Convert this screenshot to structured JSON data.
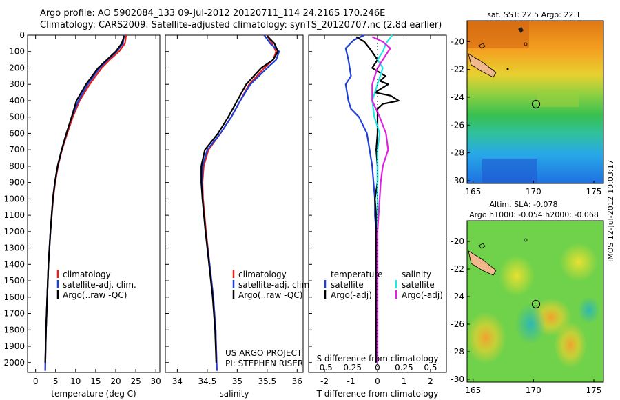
{
  "title_line1": "Argo profile: AO 5902084_133 09-Jul-2012 20120711_114 24.216S 170.246E",
  "title_line2": "Climatology: CARS2009. Satellite-adjusted climatology: synTS_20120707.nc (2.8d earlier)",
  "side_text": "IMOS 12-Jul-2012 10:03:17",
  "credit_line1": "US ARGO PROJECT",
  "credit_line2": "PI: STEPHEN RISER",
  "colors": {
    "climatology": "#e8201c",
    "satellite": "#1f3fd6",
    "argo": "#000000",
    "sat_sal": "#1ee8e8",
    "argo_sal": "#e020e0"
  },
  "chart_data": [
    {
      "type": "line",
      "name": "temperature",
      "xlabel": "temperature (deg C)",
      "ylabel": "",
      "xlim": [
        -2,
        31
      ],
      "ylim": [
        2060,
        0
      ],
      "xticks": [
        0,
        5,
        10,
        15,
        20,
        25,
        30
      ],
      "yticks": [
        0,
        100,
        200,
        300,
        400,
        500,
        600,
        700,
        800,
        900,
        1000,
        1100,
        1200,
        1300,
        1400,
        1500,
        1600,
        1700,
        1800,
        1900,
        2000
      ],
      "legend": [
        "climatology",
        "satellite-adj. clim.",
        "Argo(..raw -QC)"
      ],
      "series": [
        {
          "name": "climatology",
          "color": "#e8201c",
          "depth": [
            0,
            50,
            100,
            150,
            200,
            300,
            400,
            500,
            600,
            700,
            800,
            900,
            1000,
            1200,
            1400,
            1600,
            1800,
            2050
          ],
          "values": [
            22.6,
            22.3,
            20.8,
            18.5,
            16.5,
            13.5,
            11.0,
            9.3,
            7.9,
            6.6,
            5.6,
            4.9,
            4.4,
            3.7,
            3.2,
            2.9,
            2.6,
            2.4
          ]
        },
        {
          "name": "satellite-adj. clim.",
          "color": "#1f3fd6",
          "depth": [
            0,
            50,
            100,
            150,
            200,
            300,
            400,
            500,
            600,
            700,
            800,
            900,
            1000,
            1200,
            1400,
            1600,
            1800,
            2050
          ],
          "values": [
            22.1,
            21.8,
            20.2,
            18.0,
            16.0,
            13.0,
            10.7,
            9.0,
            7.7,
            6.5,
            5.5,
            4.8,
            4.3,
            3.7,
            3.2,
            2.9,
            2.6,
            2.4
          ]
        },
        {
          "name": "Argo(..raw -QC)",
          "color": "#000000",
          "depth": [
            5,
            50,
            100,
            150,
            200,
            300,
            400,
            450,
            500,
            600,
            700,
            800,
            900,
            1000,
            1200,
            1400,
            1600,
            1800,
            2000
          ],
          "values": [
            22.1,
            21.5,
            20.0,
            17.8,
            15.6,
            12.6,
            10.2,
            9.6,
            9.0,
            7.7,
            6.5,
            5.5,
            4.8,
            4.3,
            3.7,
            3.2,
            2.9,
            2.6,
            2.4
          ]
        }
      ]
    },
    {
      "type": "line",
      "name": "salinity",
      "xlabel": "salinity",
      "xlim": [
        33.8,
        36.1
      ],
      "ylim": [
        2060,
        0
      ],
      "xticks": [
        34,
        34.5,
        35,
        35.5,
        36
      ],
      "legend": [
        "climatology",
        "satellite-adj. clim.",
        "Argo(..raw -QC)"
      ],
      "series": [
        {
          "name": "climatology",
          "color": "#e8201c",
          "depth": [
            0,
            50,
            100,
            150,
            200,
            300,
            400,
            500,
            600,
            700,
            800,
            900,
            1000,
            1200,
            1400,
            1600,
            1800,
            2050
          ],
          "values": [
            35.5,
            35.58,
            35.65,
            35.6,
            35.45,
            35.2,
            35.05,
            34.9,
            34.72,
            34.52,
            34.44,
            34.42,
            34.43,
            34.48,
            34.54,
            34.6,
            34.64,
            34.66
          ]
        },
        {
          "name": "satellite-adj. clim.",
          "color": "#1f3fd6",
          "depth": [
            0,
            50,
            100,
            150,
            200,
            300,
            400,
            500,
            600,
            700,
            800,
            900,
            1000,
            1200,
            1400,
            1600,
            1800,
            2050
          ],
          "values": [
            35.45,
            35.55,
            35.7,
            35.65,
            35.5,
            35.22,
            35.05,
            34.9,
            34.72,
            34.5,
            34.42,
            34.41,
            34.42,
            34.47,
            34.54,
            34.6,
            34.64,
            34.66
          ]
        },
        {
          "name": "Argo(..raw -QC)",
          "color": "#000000",
          "depth": [
            5,
            50,
            100,
            150,
            200,
            300,
            400,
            500,
            600,
            700,
            800,
            900,
            1000,
            1200,
            1400,
            1600,
            1800,
            2000
          ],
          "values": [
            35.5,
            35.62,
            35.68,
            35.6,
            35.4,
            35.15,
            35.0,
            34.85,
            34.68,
            34.46,
            34.4,
            34.4,
            34.42,
            34.47,
            34.53,
            34.59,
            34.63,
            34.65
          ]
        }
      ]
    },
    {
      "type": "line",
      "name": "differences",
      "xlabel": "T difference from climatology",
      "xlabel_top": "S difference from climatology",
      "xlim": [
        -2.6,
        2.6
      ],
      "ylim": [
        2060,
        0
      ],
      "xticks": [
        -2,
        -1,
        0,
        1,
        2
      ],
      "xticks_top": [
        "-0.5",
        "-0.25",
        "0",
        "0.25",
        "0.5"
      ],
      "legend_headers": [
        "temperature",
        "salinity"
      ],
      "legend": [
        "satellite",
        "Argo(-adj)",
        "satellite",
        "Argo(-adj)"
      ],
      "series": [
        {
          "name": "temperature satellite",
          "color": "#1f3fd6",
          "depth": [
            0,
            30,
            80,
            150,
            250,
            300,
            400,
            450,
            500,
            600,
            700,
            800,
            900,
            1000,
            1100,
            1200,
            1400,
            1600,
            1800,
            2000
          ],
          "values": [
            -0.5,
            -0.9,
            -1.2,
            -1.1,
            -1.0,
            -1.2,
            -1.1,
            -1.0,
            -0.7,
            -0.4,
            -0.3,
            -0.2,
            -0.15,
            -0.1,
            -0.1,
            -0.05,
            -0.05,
            -0.05,
            -0.05,
            -0.05
          ]
        },
        {
          "name": "temperature Argo(-adj)",
          "color": "#000000",
          "depth": [
            10,
            40,
            80,
            150,
            200,
            250,
            280,
            300,
            350,
            370,
            400,
            420,
            450,
            500,
            600,
            700,
            800,
            900,
            1000,
            1100,
            1300,
            1500,
            1700,
            2000
          ],
          "values": [
            -0.8,
            -0.5,
            -0.3,
            0.0,
            -0.2,
            0.3,
            0.1,
            0.4,
            -0.1,
            0.5,
            0.8,
            0.2,
            0.0,
            0.0,
            0.0,
            -0.05,
            0.0,
            0.0,
            -0.1,
            -0.05,
            -0.05,
            -0.05,
            -0.05,
            -0.05
          ]
        },
        {
          "name": "salinity satellite",
          "color": "#1ee8e8",
          "depth": [
            0,
            50,
            100,
            150,
            200,
            300,
            400,
            500,
            600,
            700,
            800,
            900,
            1000,
            1200,
            1400,
            1600,
            1800,
            2000
          ],
          "values": [
            0.14,
            0.08,
            0.05,
            0.0,
            0.05,
            0.0,
            -0.05,
            -0.03,
            0.02,
            0.0,
            0.0,
            0.0,
            0.0,
            0.0,
            0.0,
            0.0,
            0.0,
            0.0
          ]
        },
        {
          "name": "salinity Argo(-adj)",
          "color": "#e020e0",
          "depth": [
            10,
            40,
            80,
            120,
            200,
            300,
            400,
            500,
            600,
            700,
            800,
            900,
            1000,
            1200,
            1400,
            1600,
            1800,
            2000
          ],
          "values": [
            -0.05,
            0.05,
            0.12,
            0.08,
            0.0,
            -0.05,
            -0.05,
            0.02,
            0.08,
            0.1,
            0.05,
            0.03,
            0.02,
            0.0,
            0.0,
            0.0,
            0.0,
            0.0
          ]
        }
      ]
    },
    {
      "type": "heatmap",
      "name": "sst_map",
      "title": "sat. SST: 22.5 Argo: 22.1",
      "xlim": [
        164.5,
        175.8
      ],
      "ylim": [
        -30.2,
        -18.5
      ],
      "xticks": [
        165,
        170,
        175
      ],
      "yticks": [
        -20,
        -22,
        -24,
        -26,
        -28,
        -30
      ],
      "argo_position": [
        170.246,
        -24.216
      ]
    },
    {
      "type": "heatmap",
      "name": "sla_map",
      "title_line1": "Altim. SLA: -0.078",
      "title_line2": "Argo h1000: -0.054 h2000: -0.068",
      "xlim": [
        164.5,
        175.8
      ],
      "ylim": [
        -30.2,
        -18.5
      ],
      "xticks": [
        165,
        170,
        175
      ],
      "yticks": [
        -20,
        -22,
        -24,
        -26,
        -28,
        -30
      ],
      "argo_position": [
        170.246,
        -24.216
      ]
    }
  ]
}
